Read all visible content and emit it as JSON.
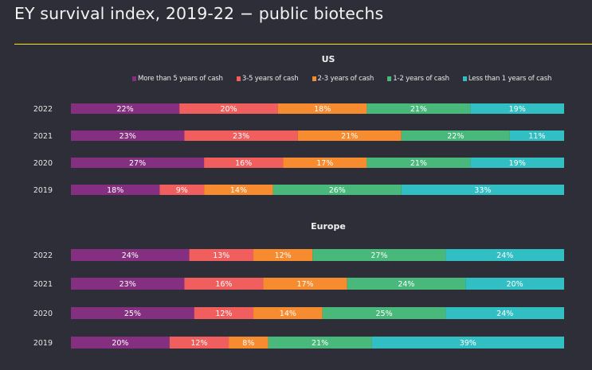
{
  "header": {
    "title": "EY survival index, 2019-22 − public biotechs",
    "accent_color": "#ffe600"
  },
  "chart_data": {
    "type": "bar",
    "orientation": "horizontal-stacked-100",
    "title": "EY survival index, 2019-22 − public biotechs",
    "legend_position": "top-right",
    "legend": [
      {
        "name": "More than 5 years of cash",
        "color": "#842f7f"
      },
      {
        "name": "3-5 years of cash",
        "color": "#f05f5e"
      },
      {
        "name": "2-3 years of cash",
        "color": "#f68b2f"
      },
      {
        "name": "1-2 years of cash",
        "color": "#48b87b"
      },
      {
        "name": "Less than 1 years of cash",
        "color": "#32bfc3"
      }
    ],
    "panels": [
      {
        "title": "US",
        "categories": [
          "2022",
          "2021",
          "2020",
          "2019"
        ],
        "series": [
          {
            "name": "More than 5 years of cash",
            "values": [
              22,
              23,
              27,
              18
            ]
          },
          {
            "name": "3-5 years of cash",
            "values": [
              20,
              23,
              16,
              9
            ]
          },
          {
            "name": "2-3 years of cash",
            "values": [
              18,
              21,
              17,
              14
            ]
          },
          {
            "name": "1-2 years of cash",
            "values": [
              21,
              22,
              21,
              26
            ]
          },
          {
            "name": "Less than 1 years of cash",
            "values": [
              19,
              11,
              19,
              33
            ]
          }
        ],
        "xlim": [
          0,
          100
        ],
        "value_suffix": "%"
      },
      {
        "title": "Europe",
        "categories": [
          "2022",
          "2021",
          "2020",
          "2019"
        ],
        "series": [
          {
            "name": "More than 5 years of cash",
            "values": [
              24,
              23,
              25,
              20
            ]
          },
          {
            "name": "3-5 years of cash",
            "values": [
              13,
              16,
              12,
              12
            ]
          },
          {
            "name": "2-3 years of cash",
            "values": [
              12,
              17,
              14,
              8
            ]
          },
          {
            "name": "1-2 years of cash",
            "values": [
              27,
              24,
              25,
              21
            ]
          },
          {
            "name": "Less than 1 years of cash",
            "values": [
              24,
              20,
              24,
              39
            ]
          }
        ],
        "xlim": [
          0,
          100
        ],
        "value_suffix": "%"
      }
    ]
  }
}
